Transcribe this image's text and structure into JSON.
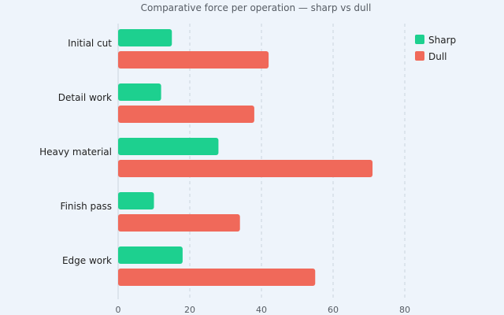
{
  "chart_data": {
    "type": "bar",
    "orientation": "horizontal",
    "title": "Comparative force per operation — sharp vs dull",
    "xlabel": "",
    "ylabel": "",
    "categories": [
      "Initial cut",
      "Detail work",
      "Heavy material",
      "Finish pass",
      "Edge work"
    ],
    "series": [
      {
        "name": "Sharp",
        "color": "#1dd08f",
        "values": [
          15,
          12,
          28,
          10,
          18
        ]
      },
      {
        "name": "Dull",
        "color": "#f0695a",
        "values": [
          42,
          38,
          71,
          34,
          55
        ]
      }
    ],
    "xlim": [
      0,
      80
    ],
    "ticks": [
      0,
      20,
      40,
      60,
      80
    ],
    "grid": true,
    "legend_position": "top-right"
  }
}
